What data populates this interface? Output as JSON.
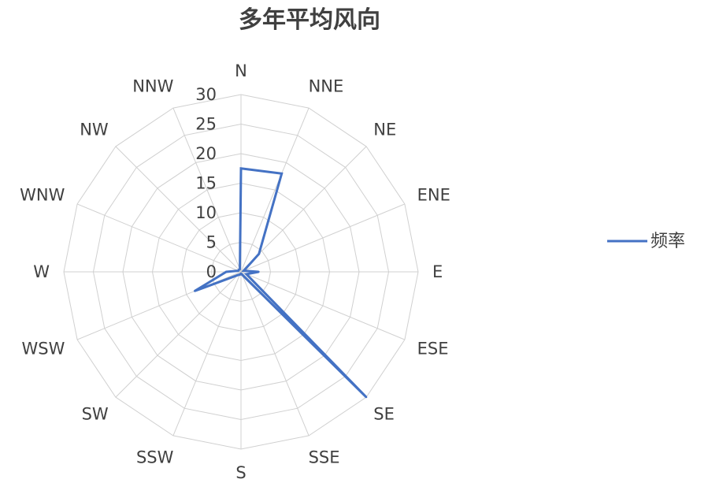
{
  "chart_data": {
    "type": "radar",
    "title": "多年平均风向",
    "directions": [
      "N",
      "NNE",
      "NE",
      "ENE",
      "E",
      "ESE",
      "SE",
      "SSE",
      "S",
      "SSW",
      "SW",
      "WSW",
      "W",
      "WNW",
      "NW",
      "NNW"
    ],
    "direction_display": [
      "N",
      "NNE",
      "NE",
      "ENE",
      "E",
      "ESE",
      "SE",
      "SSE",
      "S",
      "SSW",
      "SW",
      "WSW",
      "W",
      "WNW",
      "NW",
      "NNW"
    ],
    "radial_ticks": [
      "0",
      "5",
      "10",
      "15",
      "20",
      "25",
      "30"
    ],
    "rlim": [
      0,
      30
    ],
    "grid": true,
    "legend_position": "right",
    "series": [
      {
        "name": "频率",
        "color": "#4472c4",
        "values": [
          17.5,
          18,
          4.3,
          0.5,
          3,
          1,
          30,
          0.5,
          0.3,
          0.5,
          0.8,
          8.5,
          2.5,
          0.5,
          0.5,
          0.5
        ]
      }
    ]
  }
}
